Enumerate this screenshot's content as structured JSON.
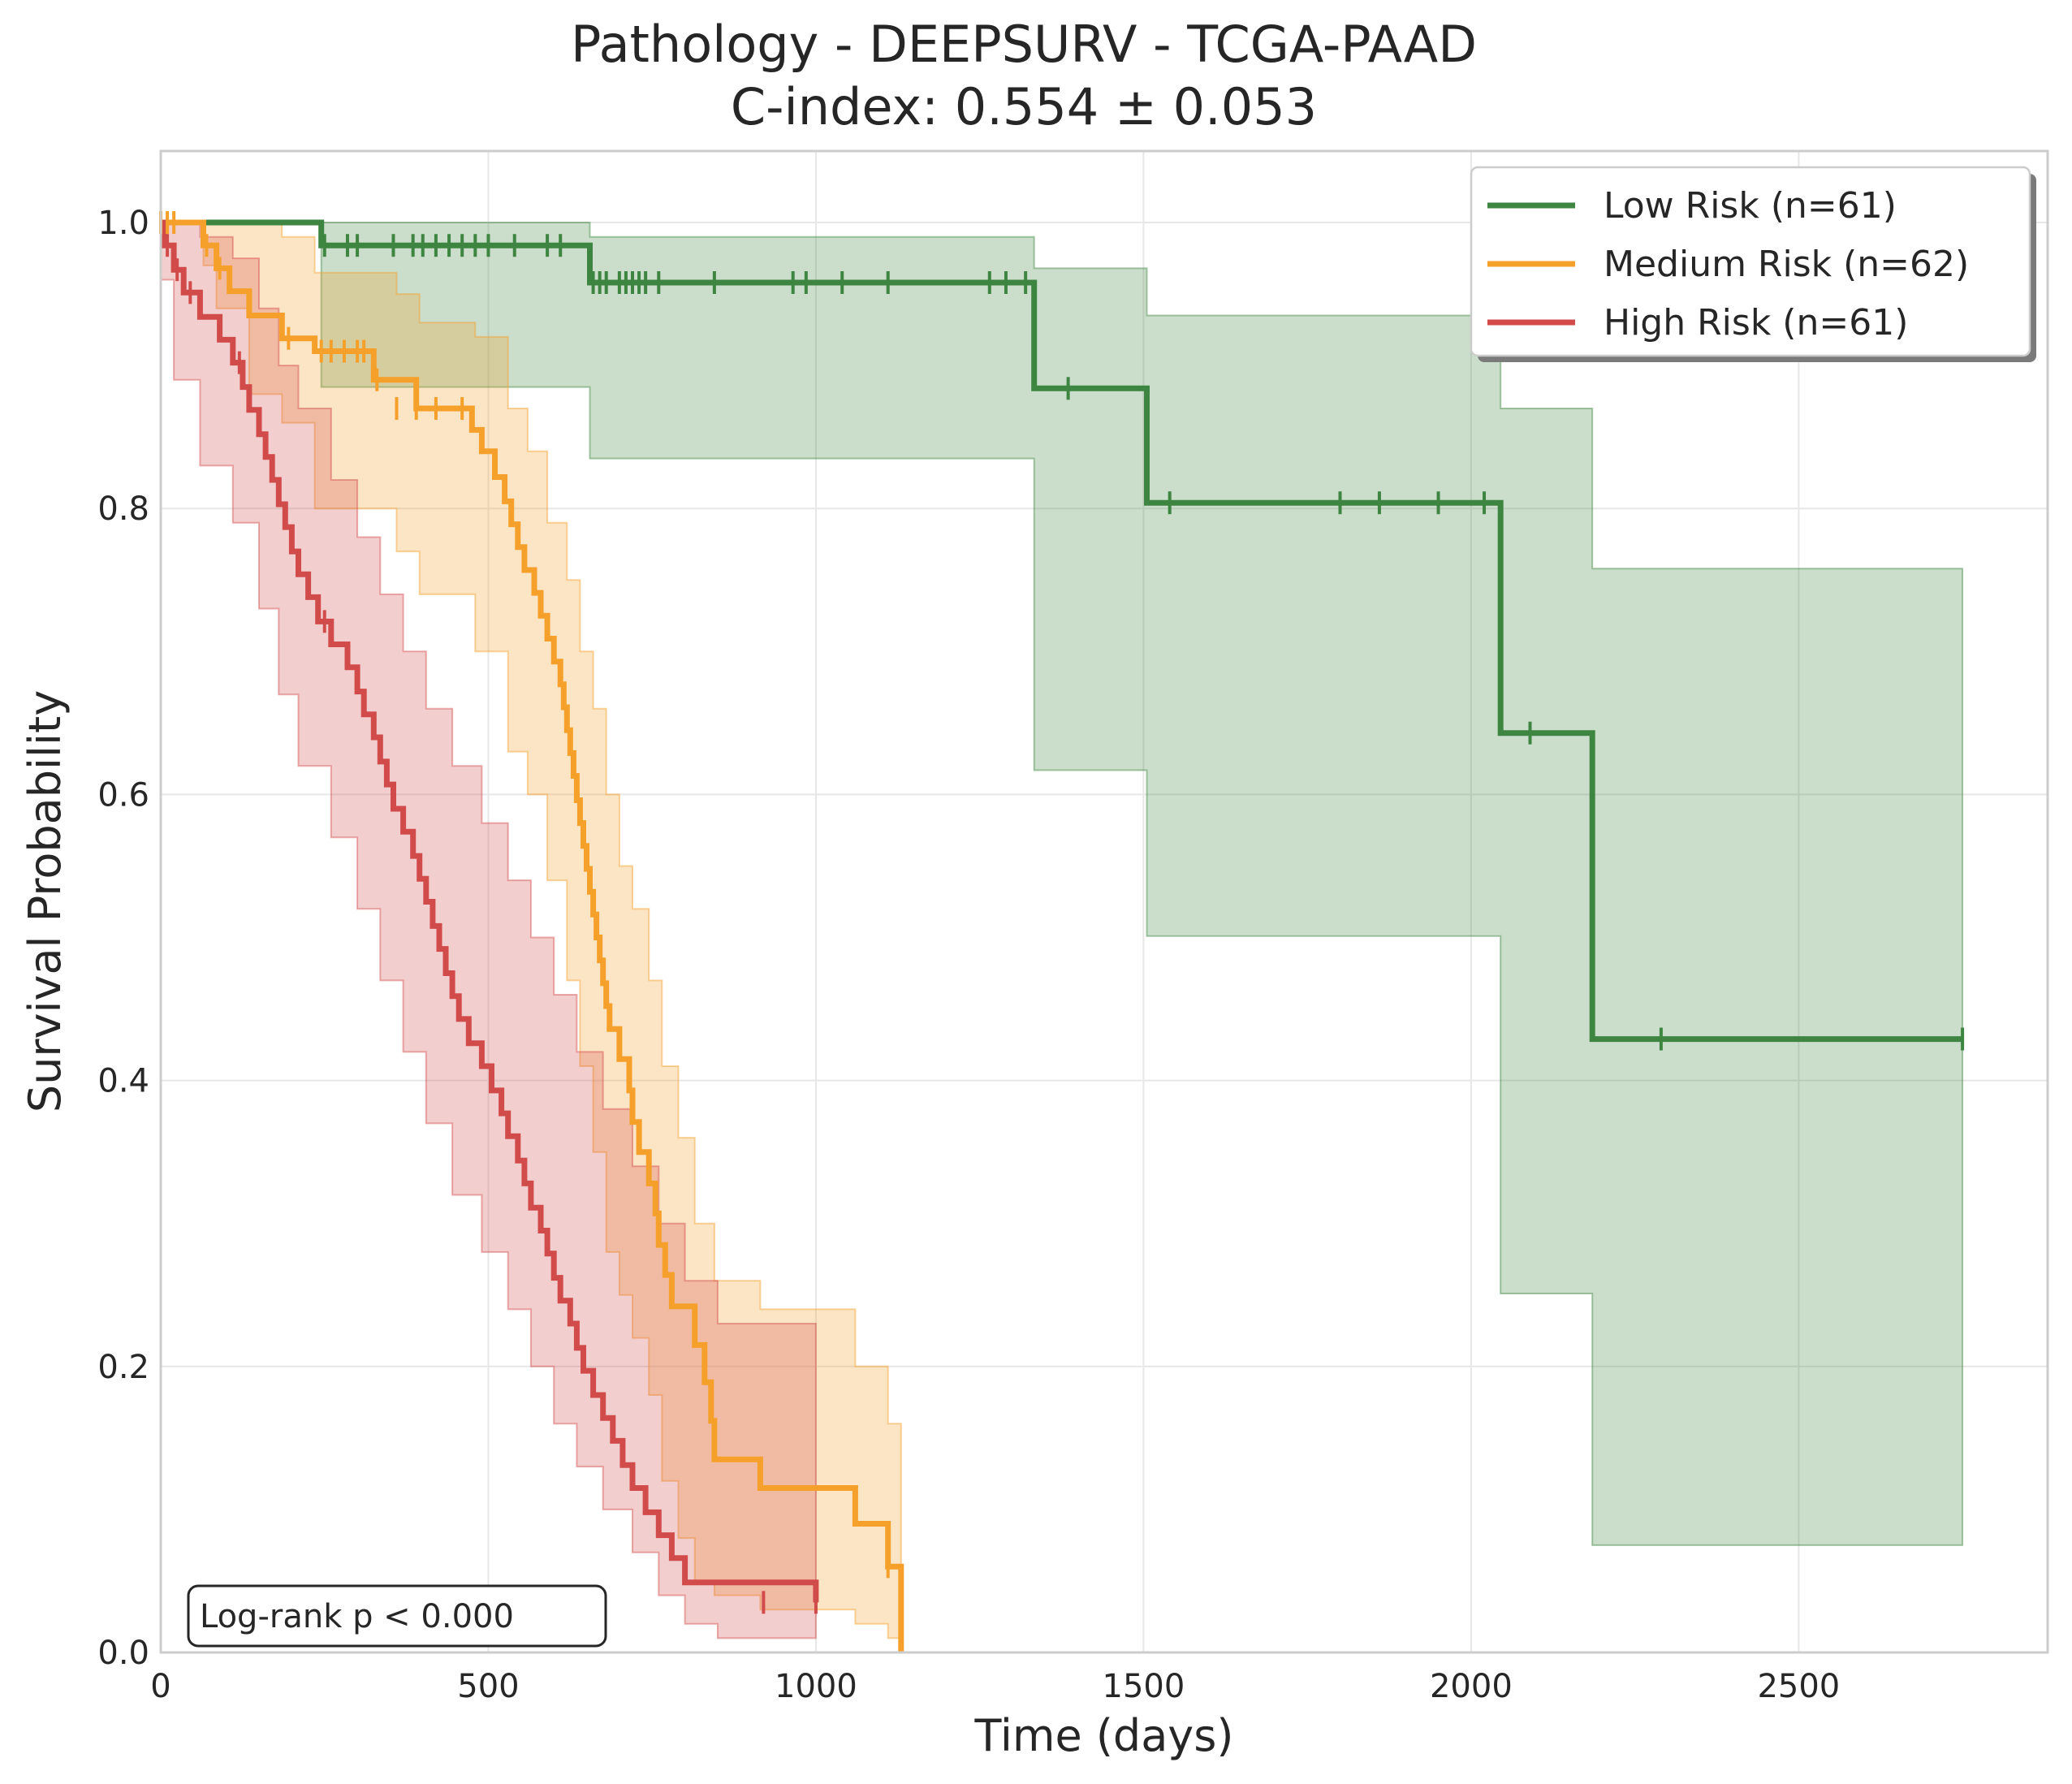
{
  "chart_data": {
    "type": "line",
    "subtype": "kaplan-meier survival curve with 95% confidence bands",
    "title": "Pathology - DEEPSURV - TCGA-PAAD",
    "subtitle": "C-index: 0.554 ± 0.053",
    "xlabel": "Time (days)",
    "ylabel": "Survival Probability",
    "xlim": [
      0,
      2880
    ],
    "ylim": [
      0,
      1.05
    ],
    "xticks": [
      0,
      500,
      1000,
      1500,
      2000,
      2500
    ],
    "yticks": [
      0.0,
      0.2,
      0.4,
      0.6,
      0.8,
      1.0
    ],
    "xtick_labels": [
      "0",
      "500",
      "1000",
      "1500",
      "2000",
      "2500"
    ],
    "ytick_labels": [
      "0.0",
      "0.2",
      "0.4",
      "0.6",
      "0.8",
      "1.0"
    ],
    "grid": true,
    "legend_position": "top-right",
    "annotation": "Log-rank p < 0.000",
    "series": [
      {
        "name": "Low Risk (n=61)",
        "color": "#3d8540",
        "steps": [
          [
            0,
            1.0
          ],
          [
            245,
            0.984
          ],
          [
            655,
            0.958
          ],
          [
            1333,
            0.884
          ],
          [
            1505,
            0.804
          ],
          [
            2045,
            0.643
          ],
          [
            2185,
            0.429
          ]
        ],
        "end_x": 2750,
        "ci": [
          [
            0,
            1.0,
            1.0
          ],
          [
            245,
            0.885,
            1.0
          ],
          [
            655,
            0.835,
            0.99
          ],
          [
            1333,
            0.617,
            0.968
          ],
          [
            1505,
            0.501,
            0.935
          ],
          [
            2045,
            0.251,
            0.87
          ],
          [
            2185,
            0.075,
            0.758
          ]
        ],
        "censored": [
          [
            250,
            0.984
          ],
          [
            285,
            0.984
          ],
          [
            300,
            0.984
          ],
          [
            355,
            0.984
          ],
          [
            385,
            0.984
          ],
          [
            400,
            0.984
          ],
          [
            420,
            0.984
          ],
          [
            440,
            0.984
          ],
          [
            460,
            0.984
          ],
          [
            480,
            0.984
          ],
          [
            500,
            0.984
          ],
          [
            540,
            0.984
          ],
          [
            590,
            0.984
          ],
          [
            610,
            0.984
          ],
          [
            660,
            0.958
          ],
          [
            670,
            0.958
          ],
          [
            680,
            0.958
          ],
          [
            700,
            0.958
          ],
          [
            710,
            0.958
          ],
          [
            720,
            0.958
          ],
          [
            730,
            0.958
          ],
          [
            740,
            0.958
          ],
          [
            760,
            0.958
          ],
          [
            845,
            0.958
          ],
          [
            965,
            0.958
          ],
          [
            985,
            0.958
          ],
          [
            1040,
            0.958
          ],
          [
            1110,
            0.958
          ],
          [
            1265,
            0.958
          ],
          [
            1290,
            0.958
          ],
          [
            1320,
            0.958
          ],
          [
            1385,
            0.884
          ],
          [
            1540,
            0.804
          ],
          [
            1800,
            0.804
          ],
          [
            1860,
            0.804
          ],
          [
            1950,
            0.804
          ],
          [
            2020,
            0.804
          ],
          [
            2090,
            0.643
          ],
          [
            2290,
            0.429
          ],
          [
            2750,
            0.429
          ]
        ]
      },
      {
        "name": "Medium Risk (n=62)",
        "color": "#f5a02a",
        "steps": [
          [
            0,
            1.0
          ],
          [
            65,
            0.984
          ],
          [
            85,
            0.968
          ],
          [
            105,
            0.952
          ],
          [
            135,
            0.935
          ],
          [
            185,
            0.919
          ],
          [
            235,
            0.91
          ],
          [
            325,
            0.89
          ],
          [
            390,
            0.87
          ],
          [
            475,
            0.855
          ],
          [
            490,
            0.84
          ],
          [
            510,
            0.822
          ],
          [
            525,
            0.805
          ],
          [
            535,
            0.789
          ],
          [
            545,
            0.773
          ],
          [
            555,
            0.757
          ],
          [
            570,
            0.741
          ],
          [
            580,
            0.725
          ],
          [
            590,
            0.709
          ],
          [
            600,
            0.693
          ],
          [
            610,
            0.677
          ],
          [
            615,
            0.661
          ],
          [
            620,
            0.645
          ],
          [
            625,
            0.629
          ],
          [
            630,
            0.613
          ],
          [
            635,
            0.596
          ],
          [
            640,
            0.58
          ],
          [
            645,
            0.564
          ],
          [
            650,
            0.548
          ],
          [
            655,
            0.532
          ],
          [
            660,
            0.516
          ],
          [
            665,
            0.5
          ],
          [
            670,
            0.484
          ],
          [
            675,
            0.468
          ],
          [
            680,
            0.452
          ],
          [
            685,
            0.436
          ],
          [
            700,
            0.415
          ],
          [
            715,
            0.393
          ],
          [
            720,
            0.371
          ],
          [
            730,
            0.35
          ],
          [
            745,
            0.328
          ],
          [
            755,
            0.307
          ],
          [
            760,
            0.285
          ],
          [
            770,
            0.264
          ],
          [
            780,
            0.242
          ],
          [
            815,
            0.215
          ],
          [
            830,
            0.189
          ],
          [
            840,
            0.162
          ],
          [
            845,
            0.135
          ],
          [
            915,
            0.115
          ],
          [
            1060,
            0.09
          ],
          [
            1110,
            0.06
          ],
          [
            1130,
            0.0
          ]
        ],
        "end_x": 1130,
        "ci": [
          [
            0,
            1.0,
            1.0
          ],
          [
            65,
            0.97,
            1.0
          ],
          [
            85,
            0.94,
            1.0
          ],
          [
            135,
            0.88,
            1.0
          ],
          [
            185,
            0.86,
            0.99
          ],
          [
            235,
            0.8,
            0.965
          ],
          [
            360,
            0.77,
            0.95
          ],
          [
            395,
            0.74,
            0.93
          ],
          [
            480,
            0.7,
            0.92
          ],
          [
            530,
            0.63,
            0.87
          ],
          [
            560,
            0.6,
            0.84
          ],
          [
            590,
            0.54,
            0.79
          ],
          [
            620,
            0.47,
            0.75
          ],
          [
            640,
            0.41,
            0.7
          ],
          [
            660,
            0.35,
            0.66
          ],
          [
            680,
            0.28,
            0.6
          ],
          [
            700,
            0.25,
            0.55
          ],
          [
            720,
            0.22,
            0.52
          ],
          [
            745,
            0.18,
            0.47
          ],
          [
            765,
            0.12,
            0.41
          ],
          [
            790,
            0.08,
            0.36
          ],
          [
            815,
            0.05,
            0.3
          ],
          [
            845,
            0.04,
            0.26
          ],
          [
            915,
            0.03,
            0.24
          ],
          [
            1060,
            0.02,
            0.2
          ],
          [
            1110,
            0.01,
            0.16
          ],
          [
            1130,
            0.0,
            0.16
          ]
        ],
        "censored": [
          [
            0,
            1.0
          ],
          [
            10,
            1.0
          ],
          [
            20,
            1.0
          ],
          [
            70,
            0.984
          ],
          [
            90,
            0.968
          ],
          [
            195,
            0.919
          ],
          [
            245,
            0.91
          ],
          [
            260,
            0.91
          ],
          [
            280,
            0.91
          ],
          [
            300,
            0.91
          ],
          [
            310,
            0.91
          ],
          [
            330,
            0.89
          ],
          [
            360,
            0.87
          ],
          [
            390,
            0.87
          ],
          [
            420,
            0.87
          ],
          [
            460,
            0.87
          ],
          [
            1110,
            0.06
          ]
        ]
      },
      {
        "name": "High Risk (n=61)",
        "color": "#d24b4b",
        "steps": [
          [
            0,
            1.0
          ],
          [
            5,
            0.984
          ],
          [
            20,
            0.967
          ],
          [
            35,
            0.951
          ],
          [
            60,
            0.934
          ],
          [
            90,
            0.918
          ],
          [
            110,
            0.902
          ],
          [
            125,
            0.885
          ],
          [
            135,
            0.869
          ],
          [
            150,
            0.852
          ],
          [
            160,
            0.836
          ],
          [
            170,
            0.82
          ],
          [
            180,
            0.803
          ],
          [
            190,
            0.787
          ],
          [
            200,
            0.77
          ],
          [
            210,
            0.754
          ],
          [
            225,
            0.738
          ],
          [
            240,
            0.721
          ],
          [
            260,
            0.705
          ],
          [
            285,
            0.689
          ],
          [
            300,
            0.672
          ],
          [
            310,
            0.656
          ],
          [
            325,
            0.64
          ],
          [
            335,
            0.623
          ],
          [
            345,
            0.607
          ],
          [
            355,
            0.59
          ],
          [
            370,
            0.574
          ],
          [
            385,
            0.557
          ],
          [
            395,
            0.541
          ],
          [
            405,
            0.525
          ],
          [
            415,
            0.508
          ],
          [
            425,
            0.492
          ],
          [
            435,
            0.475
          ],
          [
            445,
            0.459
          ],
          [
            455,
            0.443
          ],
          [
            470,
            0.426
          ],
          [
            490,
            0.41
          ],
          [
            505,
            0.393
          ],
          [
            520,
            0.377
          ],
          [
            530,
            0.361
          ],
          [
            545,
            0.344
          ],
          [
            555,
            0.328
          ],
          [
            565,
            0.311
          ],
          [
            580,
            0.295
          ],
          [
            590,
            0.279
          ],
          [
            600,
            0.262
          ],
          [
            610,
            0.246
          ],
          [
            625,
            0.23
          ],
          [
            635,
            0.213
          ],
          [
            645,
            0.197
          ],
          [
            660,
            0.18
          ],
          [
            675,
            0.164
          ],
          [
            690,
            0.148
          ],
          [
            705,
            0.131
          ],
          [
            720,
            0.115
          ],
          [
            740,
            0.098
          ],
          [
            760,
            0.082
          ],
          [
            780,
            0.066
          ],
          [
            800,
            0.049
          ],
          [
            1000,
            0.035
          ]
        ],
        "end_x": 1000,
        "ci": [
          [
            0,
            0.96,
            1.0
          ],
          [
            20,
            0.89,
            1.0
          ],
          [
            60,
            0.83,
            0.99
          ],
          [
            110,
            0.79,
            0.975
          ],
          [
            150,
            0.73,
            0.94
          ],
          [
            180,
            0.67,
            0.9
          ],
          [
            210,
            0.62,
            0.87
          ],
          [
            260,
            0.57,
            0.82
          ],
          [
            300,
            0.52,
            0.78
          ],
          [
            335,
            0.47,
            0.74
          ],
          [
            370,
            0.42,
            0.7
          ],
          [
            405,
            0.37,
            0.66
          ],
          [
            445,
            0.32,
            0.62
          ],
          [
            490,
            0.28,
            0.58
          ],
          [
            530,
            0.24,
            0.54
          ],
          [
            565,
            0.2,
            0.5
          ],
          [
            600,
            0.16,
            0.46
          ],
          [
            635,
            0.13,
            0.42
          ],
          [
            675,
            0.1,
            0.38
          ],
          [
            720,
            0.07,
            0.34
          ],
          [
            760,
            0.04,
            0.3
          ],
          [
            800,
            0.02,
            0.26
          ],
          [
            850,
            0.01,
            0.23
          ],
          [
            1000,
            0.01,
            0.23
          ]
        ],
        "censored": [
          [
            10,
            0.984
          ],
          [
            25,
            0.967
          ],
          [
            45,
            0.951
          ],
          [
            120,
            0.902
          ],
          [
            250,
            0.721
          ],
          [
            920,
            0.035
          ],
          [
            1000,
            0.035
          ]
        ]
      }
    ]
  }
}
